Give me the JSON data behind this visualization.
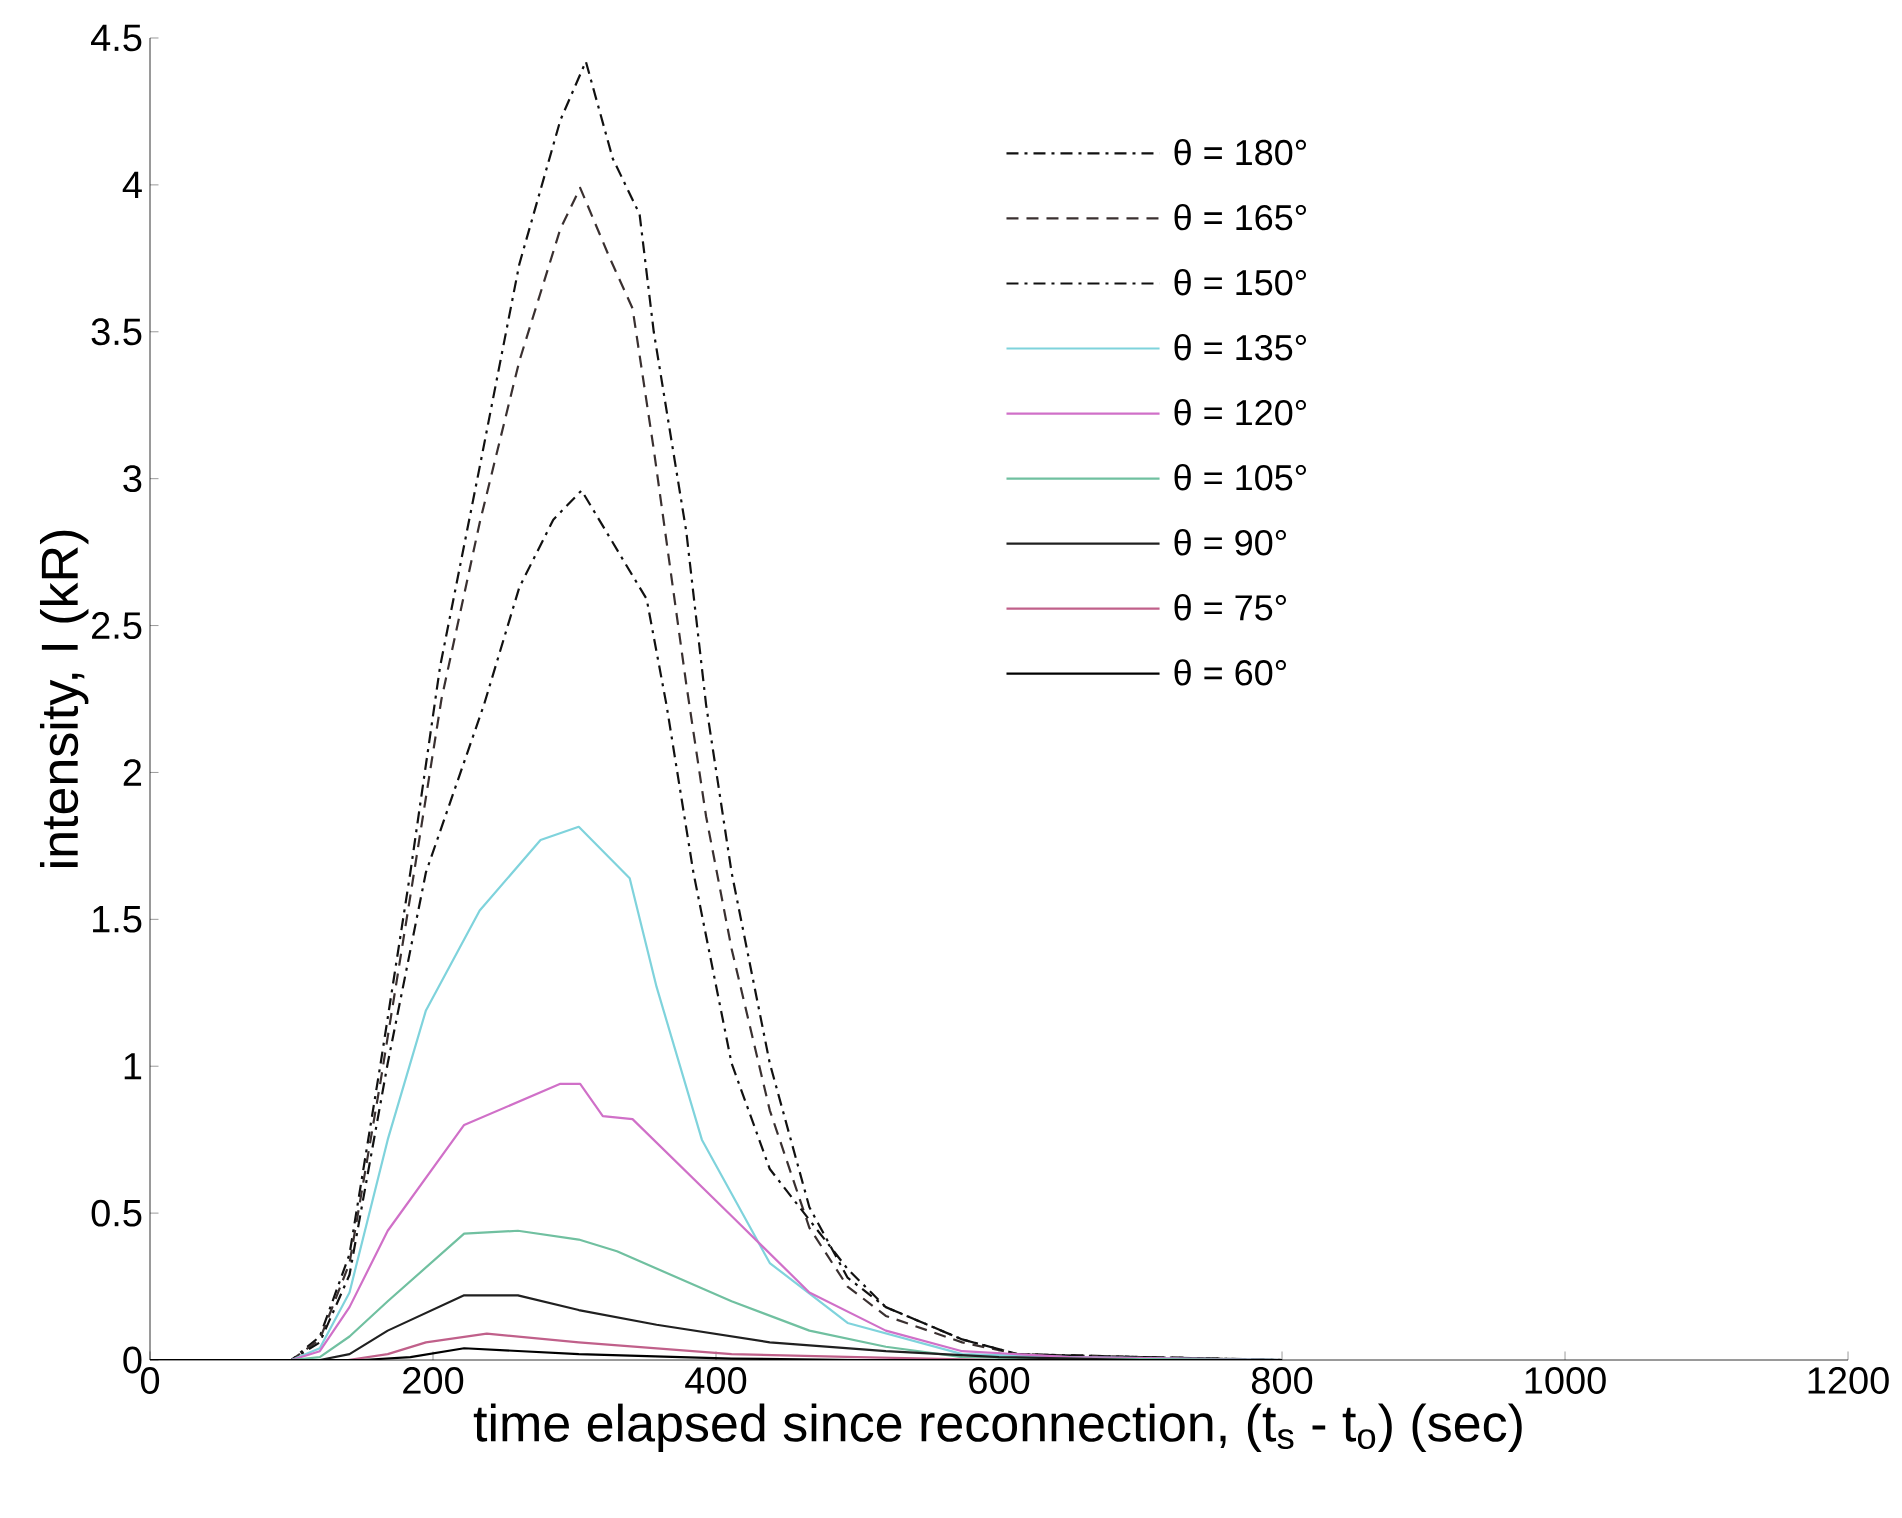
{
  "chart_data": {
    "type": "line",
    "xlabel": "time elapsed since reconnection, (t$_{s}$ - t$_{o}$) (sec)",
    "ylabel": "intensity, I (kR)",
    "xlim": [
      0,
      1200
    ],
    "ylim": [
      0,
      4.5
    ],
    "xticks": [
      0,
      200,
      400,
      600,
      800,
      1000,
      1200
    ],
    "yticks": [
      0,
      0.5,
      1,
      1.5,
      2,
      2.5,
      3,
      3.5,
      4,
      4.5
    ],
    "grid": false,
    "legend": "top right",
    "marker": "none",
    "series": [
      {
        "name": "θ = 180°",
        "color": "#111111",
        "line_style": "dashdot",
        "x": [
          0,
          100,
          120,
          141,
          163,
          184,
          205,
          233,
          261,
          290,
          308,
          327,
          346,
          356,
          379,
          393,
          411,
          438,
          466,
          493,
          520,
          574,
          613,
          700,
          800
        ],
        "values": [
          0,
          0,
          0.08,
          0.36,
          1.01,
          1.66,
          2.36,
          3.04,
          3.73,
          4.22,
          4.42,
          4.09,
          3.9,
          3.5,
          2.82,
          2.23,
          1.66,
          1.01,
          0.52,
          0.28,
          0.18,
          0.07,
          0.02,
          0.01,
          0
        ]
      },
      {
        "name": "θ = 165°",
        "color": "#3a3030",
        "line_style": "dashed",
        "x": [
          0,
          100,
          120,
          141,
          163,
          184,
          206,
          233,
          261,
          290,
          304,
          325,
          341,
          356,
          379,
          393,
          411,
          438,
          466,
          493,
          520,
          574,
          613,
          700,
          800
        ],
        "values": [
          0,
          0,
          0.07,
          0.33,
          0.95,
          1.58,
          2.25,
          2.85,
          3.4,
          3.85,
          3.99,
          3.75,
          3.58,
          3.1,
          2.3,
          1.85,
          1.4,
          0.85,
          0.45,
          0.25,
          0.15,
          0.06,
          0.02,
          0.01,
          0
        ]
      },
      {
        "name": "θ = 150°",
        "color": "#111111",
        "line_style": "dashdot",
        "x": [
          0,
          100,
          120,
          141,
          168,
          195,
          236,
          261,
          285,
          305,
          341,
          351,
          365,
          384,
          411,
          438,
          493,
          520,
          574,
          613,
          700,
          800
        ],
        "values": [
          0,
          0,
          0.06,
          0.29,
          1.01,
          1.66,
          2.23,
          2.63,
          2.86,
          2.96,
          2.67,
          2.59,
          2.23,
          1.66,
          1.01,
          0.65,
          0.31,
          0.18,
          0.07,
          0.02,
          0.01,
          0
        ]
      },
      {
        "name": "θ = 135°",
        "color": "#7fd3dc",
        "line_style": "solid",
        "x": [
          0,
          100,
          120,
          141,
          168,
          195,
          233,
          276,
          303,
          339,
          358,
          390,
          438,
          493,
          574,
          650,
          800
        ],
        "values": [
          0,
          0,
          0.04,
          0.23,
          0.75,
          1.19,
          1.53,
          1.77,
          1.815,
          1.64,
          1.27,
          0.75,
          0.33,
          0.126,
          0.02,
          0.01,
          0
        ]
      },
      {
        "name": "θ = 120°",
        "color": "#d070c8",
        "line_style": "solid",
        "x": [
          0,
          100,
          120,
          141,
          168,
          222,
          290,
          304,
          320,
          341,
          411,
          466,
          520,
          574,
          650,
          800
        ],
        "values": [
          0,
          0,
          0.03,
          0.18,
          0.44,
          0.8,
          0.94,
          0.94,
          0.83,
          0.82,
          0.49,
          0.23,
          0.1,
          0.03,
          0.01,
          0
        ]
      },
      {
        "name": "θ = 105°",
        "color": "#70c0a0",
        "line_style": "solid",
        "x": [
          0,
          100,
          120,
          141,
          168,
          222,
          260,
          303,
          330,
          411,
          466,
          520,
          574,
          650,
          800
        ],
        "values": [
          0,
          0,
          0.01,
          0.08,
          0.2,
          0.43,
          0.44,
          0.41,
          0.37,
          0.2,
          0.1,
          0.045,
          0.01,
          0.005,
          0
        ]
      },
      {
        "name": "θ = 90°",
        "color": "#202020",
        "line_style": "solid",
        "x": [
          0,
          100,
          120,
          141,
          168,
          222,
          260,
          303,
          358,
          438,
          520,
          600,
          700,
          800
        ],
        "values": [
          0,
          0,
          0,
          0.02,
          0.1,
          0.22,
          0.22,
          0.17,
          0.12,
          0.06,
          0.03,
          0.01,
          0,
          0
        ]
      },
      {
        "name": "θ = 75°",
        "color": "#c0608a",
        "line_style": "solid",
        "x": [
          0,
          100,
          140,
          168,
          195,
          238,
          303,
          411,
          500,
          600,
          800
        ],
        "values": [
          0,
          0,
          0,
          0.02,
          0.06,
          0.09,
          0.06,
          0.02,
          0.01,
          0,
          0
        ]
      },
      {
        "name": "θ = 60°",
        "color": "#000000",
        "line_style": "solid",
        "x": [
          0,
          100,
          150,
          184,
          222,
          303,
          411,
          500,
          600,
          800
        ],
        "values": [
          0,
          0,
          0,
          0.01,
          0.04,
          0.02,
          0.005,
          0,
          0,
          0
        ]
      }
    ]
  }
}
